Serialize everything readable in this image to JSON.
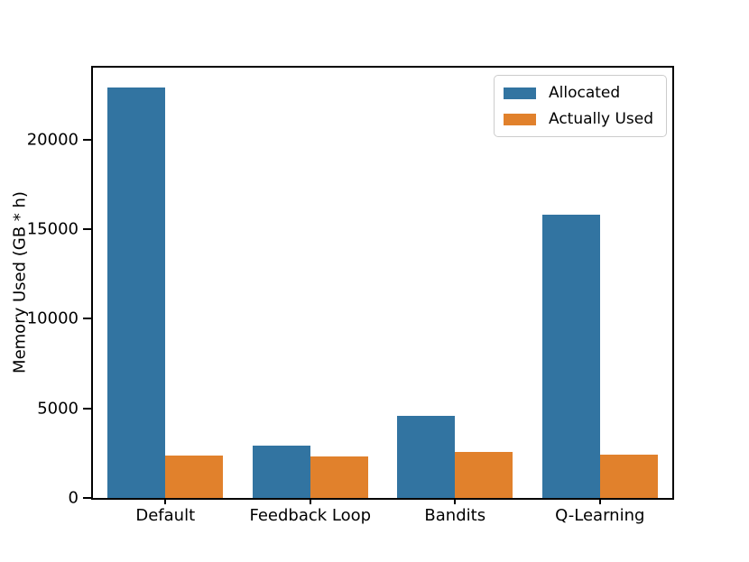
{
  "figure": {
    "background": "#ffffff"
  },
  "chart_data": {
    "type": "bar",
    "title": "",
    "xlabel": "",
    "ylabel": "Memory Used (GB * h)",
    "categories": [
      "Default",
      "Feedback Loop",
      "Bandits",
      "Q-Learning"
    ],
    "series": [
      {
        "name": "Allocated",
        "color": "#3274a1",
        "values": [
          22900,
          2900,
          4600,
          15800
        ]
      },
      {
        "name": "Actually Used",
        "color": "#e1812c",
        "values": [
          2350,
          2330,
          2570,
          2400
        ]
      }
    ],
    "ylim": [
      0,
      24000
    ],
    "yticks": [
      0,
      5000,
      10000,
      15000,
      20000
    ],
    "ytick_labels": [
      "0",
      "5000",
      "10000",
      "15000",
      "20000"
    ],
    "grid": false,
    "axis_color": "#000000",
    "legend": {
      "position": "upper right",
      "labels": [
        "Allocated",
        "Actually Used"
      ]
    }
  }
}
